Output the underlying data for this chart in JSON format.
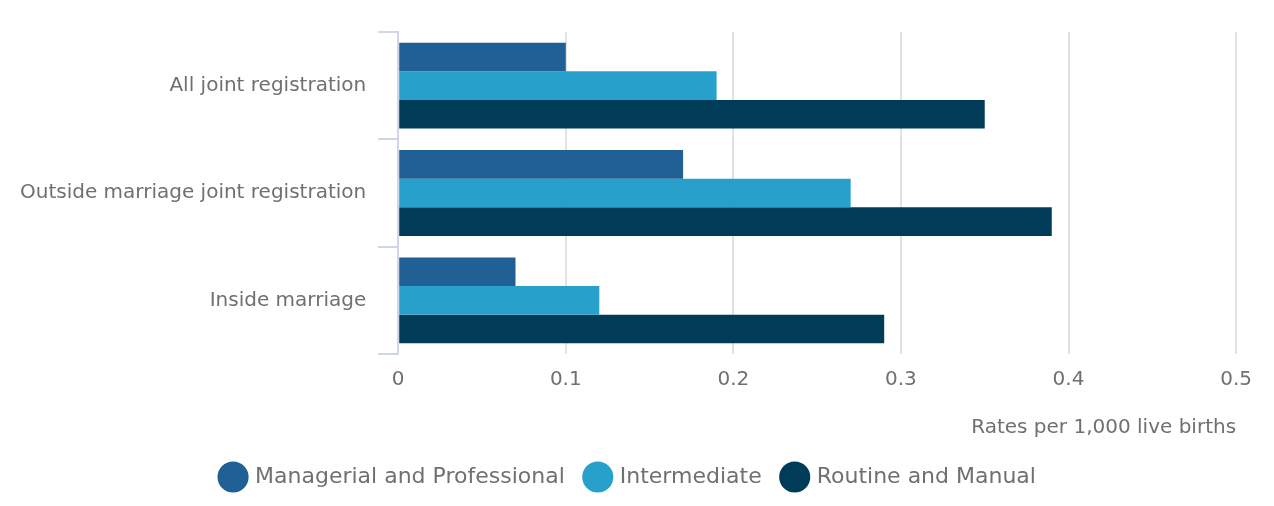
{
  "chart_data": {
    "type": "bar",
    "orientation": "horizontal",
    "categories": [
      "All joint registration",
      "Outside marriage joint registration",
      "Inside marriage"
    ],
    "series": [
      {
        "name": "Managerial and Professional",
        "color": "#206095",
        "values": [
          0.1,
          0.17,
          0.07
        ]
      },
      {
        "name": "Intermediate",
        "color": "#27a0cc",
        "values": [
          0.19,
          0.27,
          0.12
        ]
      },
      {
        "name": "Routine and Manual",
        "color": "#003c57",
        "values": [
          0.35,
          0.39,
          0.29
        ]
      }
    ],
    "xlabel": "Rates per 1,000 live births",
    "xlim": [
      0,
      0.5
    ],
    "xticks": [
      0,
      0.1,
      0.2,
      0.3,
      0.4,
      0.5
    ],
    "grid": "x",
    "legend": "bottom",
    "marker": "circle"
  }
}
